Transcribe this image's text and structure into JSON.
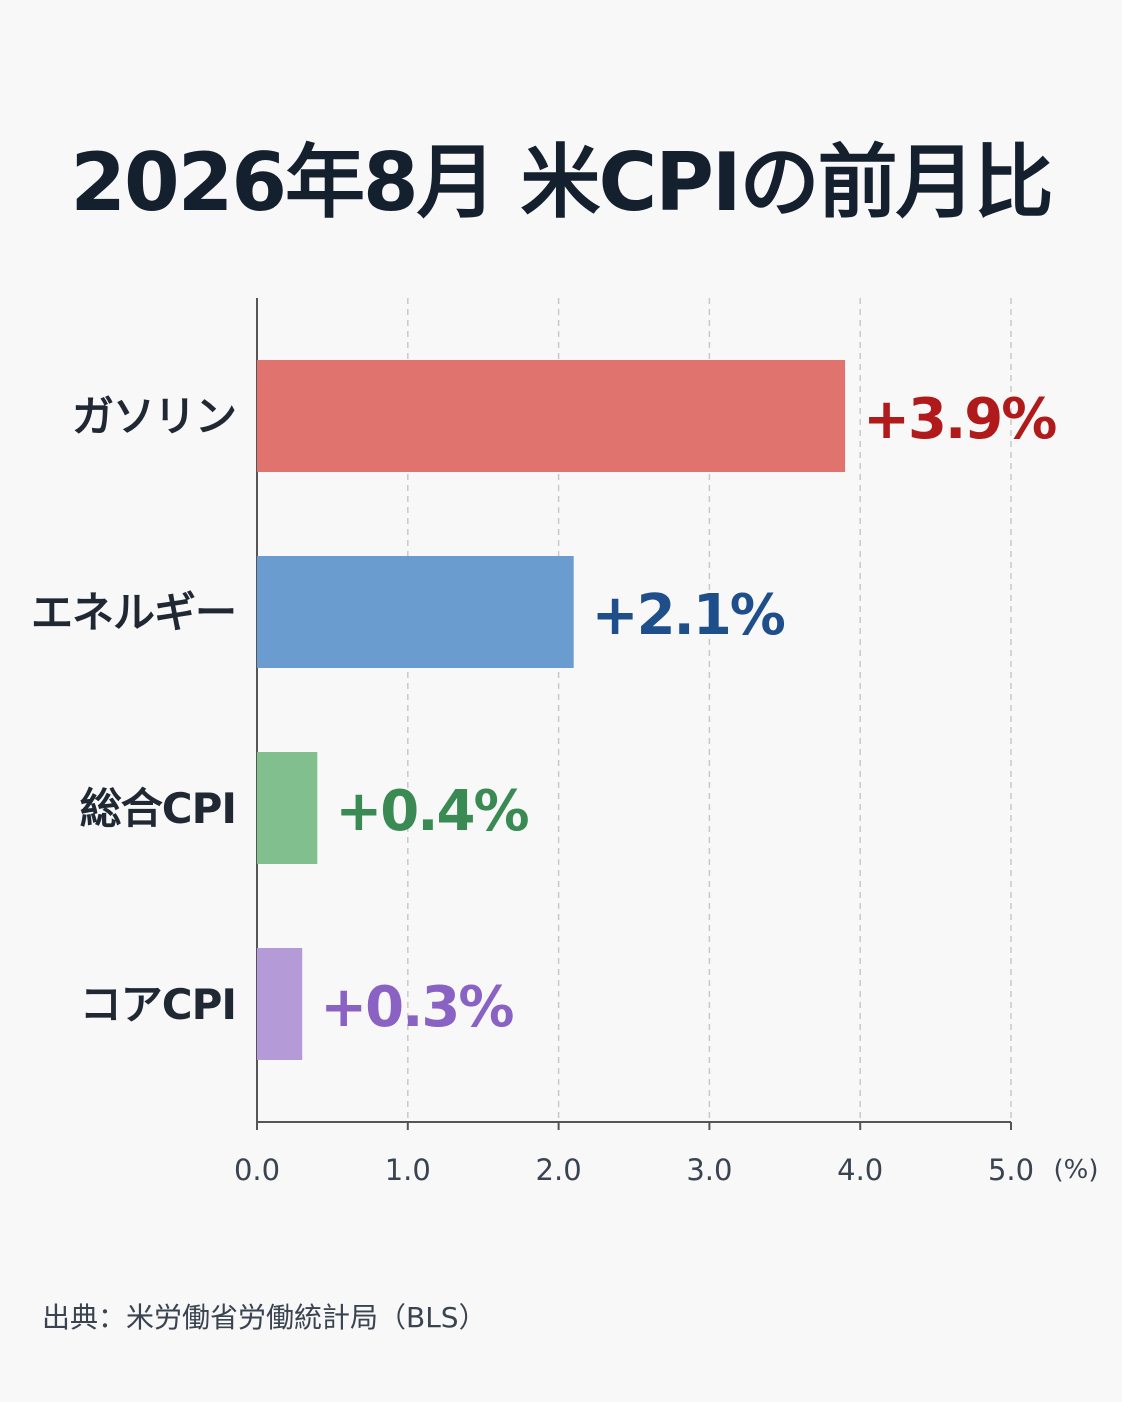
{
  "title": "2026年8月 米CPIの前月比",
  "source": "出典：米労働省労働統計局（BLS）",
  "chart_data": {
    "type": "bar",
    "orientation": "horizontal",
    "title": "2026年8月 米CPIの前月比",
    "categories": [
      "ガソリン",
      "エネルギー",
      "総合CPI",
      "コアCPI"
    ],
    "values": [
      3.9,
      2.1,
      0.4,
      0.3
    ],
    "value_labels": [
      "+3.9%",
      "+2.1%",
      "+0.4%",
      "+0.3%"
    ],
    "bar_colors": [
      "#e0736d",
      "#6a9ccf",
      "#82bf8e",
      "#b49ad6"
    ],
    "label_colors": [
      "#b01a1a",
      "#1f4f8a",
      "#3a8a54",
      "#8a62c4"
    ],
    "xlim": [
      0,
      5
    ],
    "xticks": [
      "0.0",
      "1.0",
      "2.0",
      "3.0",
      "4.0",
      "5.0"
    ],
    "xunit": "(%)",
    "grid": "vertical-dashed"
  }
}
